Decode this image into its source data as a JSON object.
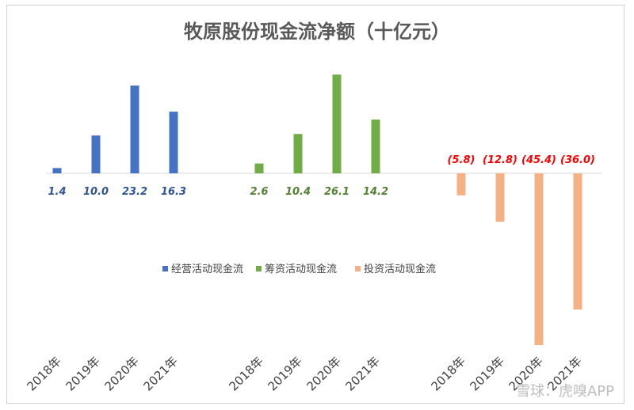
{
  "chart_data": {
    "type": "bar",
    "title": "牧原股份现金流净额（十亿元）",
    "xlabel": "",
    "ylabel": "",
    "ylim": [
      -45.4,
      26.1
    ],
    "grid": false,
    "legend_position": "center",
    "series": [
      {
        "name": "经营活动现金流",
        "color": "#4472c4",
        "label_color": "#2f5597",
        "categories": [
          "2018年",
          "2019年",
          "2020年",
          "2021年"
        ],
        "values": [
          1.4,
          10.0,
          23.2,
          16.3
        ],
        "labels": [
          "1.4",
          "10.0",
          "23.2",
          "16.3"
        ]
      },
      {
        "name": "筹资活动现金流",
        "color": "#70ad47",
        "label_color": "#548235",
        "categories": [
          "2018年",
          "2019年",
          "2020年",
          "2021年"
        ],
        "values": [
          2.6,
          10.4,
          26.1,
          14.2
        ],
        "labels": [
          "2.6",
          "10.4",
          "26.1",
          "14.2"
        ]
      },
      {
        "name": "投资活动现金流",
        "color": "#f4b183",
        "label_color": "#ff0000",
        "categories": [
          "2018年",
          "2019年",
          "2020年",
          "2021年"
        ],
        "values": [
          -5.8,
          -12.8,
          -45.4,
          -36.0
        ],
        "labels": [
          "(5.8)",
          "(12.8)",
          "(45.4)",
          "(36.0)"
        ]
      }
    ]
  },
  "watermark": "雪球：虎嗅APP"
}
